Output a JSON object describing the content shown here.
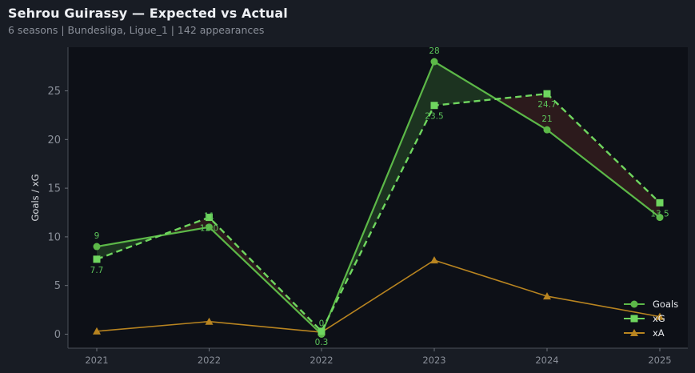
{
  "header": {
    "title": "Sehrou Guirassy — Expected vs Actual",
    "subtitle": "6 seasons | Bundesliga, Ligue_1 | 142 appearances"
  },
  "colors": {
    "goals": "#5cb848",
    "xg": "#6fd65f",
    "xa": "#b88420",
    "over_fill": "#1c3320",
    "under_fill": "#2c1a1c",
    "plot_bg": "#0d1017",
    "page_bg": "#181c24"
  },
  "chart_data": {
    "type": "line",
    "title": "Sehrou Guirassy — Expected vs Actual",
    "subtitle": "6 seasons | Bundesliga, Ligue_1 | 142 appearances",
    "xlabel": "",
    "ylabel": "Goals / xG",
    "categories": [
      "2021",
      "2022",
      "2022",
      "2023",
      "2024",
      "2025"
    ],
    "yticks": [
      0,
      5,
      10,
      15,
      20,
      25
    ],
    "ylim": [
      -1.5,
      29.5
    ],
    "grid": false,
    "legend_position": "lower right",
    "series": [
      {
        "name": "Goals",
        "marker": "circle",
        "style": "solid",
        "values": [
          9,
          11,
          0,
          28,
          21,
          12
        ],
        "labels": [
          "9",
          "11",
          "0",
          "28",
          "21",
          ""
        ]
      },
      {
        "name": "xG",
        "marker": "square",
        "style": "dashed",
        "values": [
          7.7,
          12.0,
          0.3,
          23.5,
          24.7,
          13.5
        ],
        "labels": [
          "7.7",
          "12.0",
          "0.3",
          "23.5",
          "24.7",
          "13.5"
        ]
      },
      {
        "name": "xA",
        "marker": "triangle",
        "style": "solid",
        "values": [
          0.3,
          1.3,
          0.2,
          7.6,
          3.9,
          1.8
        ]
      }
    ]
  },
  "legend": {
    "items": [
      "Goals",
      "xG",
      "xA"
    ]
  }
}
